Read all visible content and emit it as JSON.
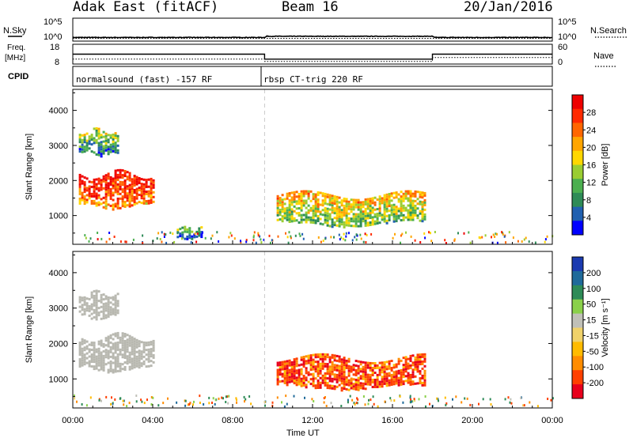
{
  "header": {
    "station": "Adak East (fitACF)",
    "beam": "Beam 16",
    "date": "20/Jan/2016"
  },
  "nsky_panel": {
    "left_label": "N.Sky",
    "left_ticks": [
      "10^5",
      "10^0"
    ],
    "right_label": "N.Search",
    "right_ticks": [
      "10^5",
      "10^0"
    ]
  },
  "freq_panel": {
    "left_label_line1": "Freq.",
    "left_label_line2": "[MHz]",
    "left_ticks": [
      "18",
      "8"
    ],
    "right_label": "Nave",
    "right_ticks": [
      "60",
      "0"
    ]
  },
  "cpid_panel": {
    "label": "CPID",
    "segments": [
      {
        "name": "normalsound (fast) -157 RF",
        "start_hour": 0
      },
      {
        "name": "rbsp CT-trig 220 RF",
        "start_hour": 9.6
      }
    ]
  },
  "time_axis": {
    "label": "Time UT",
    "ticks": [
      "00:00",
      "04:00",
      "08:00",
      "12:00",
      "16:00",
      "20:00",
      "00:00"
    ]
  },
  "colors": {
    "power_scale": [
      "#0000ff",
      "#2060b0",
      "#2e8b57",
      "#4caf50",
      "#9acd32",
      "#ffd700",
      "#ffa500",
      "#ff6600",
      "#ff2a00",
      "#ee0000"
    ],
    "velocity_scale": [
      "#e8001c",
      "#ff4000",
      "#ff8c00",
      "#ffbb00",
      "#f0d26a",
      "#c0c0b8",
      "#8ad04a",
      "#2e8b57",
      "#1f6a9a",
      "#1a3ab0"
    ],
    "ground_scatter": "#b8b8b0"
  },
  "chart_data": [
    {
      "type": "line",
      "name": "nsky-nsearch",
      "x_range_hours": [
        0,
        24
      ],
      "series": [
        {
          "name": "N.Sky",
          "x": [
            0,
            9.6,
            9.7,
            18,
            18.1,
            24
          ],
          "y_log10": [
            0.8,
            0.8,
            1.05,
            1.05,
            0.8,
            0.8
          ]
        },
        {
          "name": "N.Search",
          "x": [
            0,
            24
          ],
          "y_log10": [
            0.6,
            0.6
          ]
        }
      ],
      "ylim_log10": [
        0,
        5
      ]
    },
    {
      "type": "line",
      "name": "frequency-nave",
      "x_range_hours": [
        0,
        24
      ],
      "series": [
        {
          "name": "Freq",
          "x": [
            0,
            9.6,
            9.6,
            18,
            18,
            24
          ],
          "y": [
            13,
            13,
            10.5,
            10.5,
            13,
            13
          ],
          "ylim": [
            8,
            18
          ]
        },
        {
          "name": "Nave",
          "x": [
            0,
            9.6,
            9.6,
            18,
            18,
            24
          ],
          "y": [
            15,
            15,
            8,
            8,
            20,
            20
          ],
          "ylim": [
            0,
            60
          ]
        }
      ]
    },
    {
      "type": "heatmap",
      "name": "power",
      "title": "",
      "xlabel": "",
      "ylabel": "Slant Range [km]",
      "yticks": [
        1000,
        2000,
        3000,
        4000
      ],
      "ylim": [
        180,
        4600
      ],
      "xlim_hours": [
        0,
        24
      ],
      "colorbar": {
        "label": "Power [dB]",
        "ticks": [
          4,
          8,
          12,
          16,
          20,
          24,
          28
        ],
        "range": [
          0,
          32
        ]
      },
      "regions": [
        {
          "x0": 0.3,
          "x1": 4.1,
          "y0": 1200,
          "y1": 2300,
          "value": 25
        },
        {
          "x0": 0.3,
          "x1": 2.3,
          "y0": 2700,
          "y1": 3500,
          "value": 9
        },
        {
          "x0": 5.2,
          "x1": 6.5,
          "y0": 350,
          "y1": 700,
          "value": 6
        },
        {
          "x0": 10.2,
          "x1": 17.6,
          "y0": 700,
          "y1": 1700,
          "value": 15
        }
      ]
    },
    {
      "type": "heatmap",
      "name": "velocity",
      "title": "",
      "xlabel": "Time UT",
      "ylabel": "Slant Range [km]",
      "yticks": [
        1000,
        2000,
        3000,
        4000
      ],
      "ylim": [
        180,
        4600
      ],
      "xlim_hours": [
        0,
        24
      ],
      "colorbar": {
        "label": "Velocity [m s⁻¹]",
        "ticks": [
          -200,
          -100,
          -50,
          -15,
          15,
          50,
          100,
          200
        ]
      },
      "regions": [
        {
          "x0": 0.3,
          "x1": 4.1,
          "y0": 1200,
          "y1": 2300,
          "value": "ground"
        },
        {
          "x0": 0.3,
          "x1": 2.3,
          "y0": 2700,
          "y1": 3500,
          "value": "ground"
        },
        {
          "x0": 10.2,
          "x1": 17.6,
          "y0": 700,
          "y1": 1700,
          "value": -150
        }
      ]
    }
  ]
}
